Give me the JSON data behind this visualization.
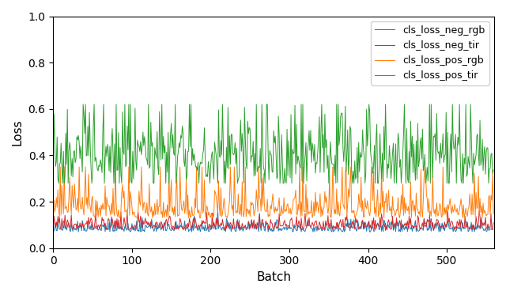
{
  "title": "",
  "xlabel": "Batch",
  "ylabel": "Loss",
  "xlim": [
    0,
    560
  ],
  "ylim": [
    0.0,
    1.0
  ],
  "xticks": [
    0,
    100,
    200,
    300,
    400,
    500
  ],
  "yticks": [
    0.0,
    0.2,
    0.4,
    0.6,
    0.8,
    1.0
  ],
  "n_batches": 560,
  "legend_labels": [
    "cls_loss_neg_rgb",
    "cls_loss_neg_tir",
    "cls_loss_pos_rgb",
    "cls_loss_pos_tir"
  ],
  "line_colors": [
    "#1f77b4",
    "#d62728",
    "#ff7f0e",
    "#2ca02c"
  ],
  "line_width": 0.7,
  "figsize": [
    6.4,
    3.73
  ],
  "dpi": 100,
  "seed": 42,
  "background_color": "#ffffff"
}
